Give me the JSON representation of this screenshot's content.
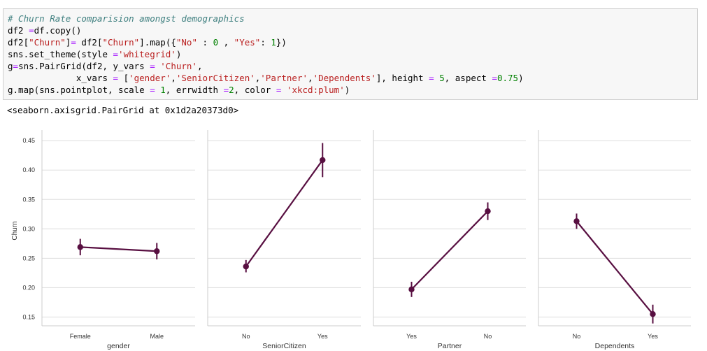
{
  "cell": {
    "lines": [
      [
        {
          "t": "comment",
          "v": "# Churn Rate comparision amongst demographics"
        }
      ],
      [
        {
          "t": "plain",
          "v": "df2 "
        },
        {
          "t": "op",
          "v": "="
        },
        {
          "t": "plain",
          "v": "df.copy()"
        }
      ],
      [
        {
          "t": "plain",
          "v": "df2["
        },
        {
          "t": "str",
          "v": "\"Churn\""
        },
        {
          "t": "plain",
          "v": "]"
        },
        {
          "t": "op",
          "v": "="
        },
        {
          "t": "plain",
          "v": " df2["
        },
        {
          "t": "str",
          "v": "\"Churn\""
        },
        {
          "t": "plain",
          "v": "].map({"
        },
        {
          "t": "str",
          "v": "\"No\""
        },
        {
          "t": "plain",
          "v": " : "
        },
        {
          "t": "num",
          "v": "0"
        },
        {
          "t": "plain",
          "v": " , "
        },
        {
          "t": "str",
          "v": "\"Yes\""
        },
        {
          "t": "plain",
          "v": ": "
        },
        {
          "t": "num",
          "v": "1"
        },
        {
          "t": "plain",
          "v": "})"
        }
      ],
      [
        {
          "t": "plain",
          "v": "sns.set_theme(style "
        },
        {
          "t": "op",
          "v": "="
        },
        {
          "t": "str",
          "v": "'whitegrid'"
        },
        {
          "t": "plain",
          "v": ")"
        }
      ],
      [
        {
          "t": "plain",
          "v": "g"
        },
        {
          "t": "op",
          "v": "="
        },
        {
          "t": "plain",
          "v": "sns.PairGrid(df2, y_vars "
        },
        {
          "t": "op",
          "v": "="
        },
        {
          "t": "plain",
          "v": " "
        },
        {
          "t": "str",
          "v": "'Churn'"
        },
        {
          "t": "plain",
          "v": ","
        }
      ],
      [
        {
          "t": "plain",
          "v": "             x_vars "
        },
        {
          "t": "op",
          "v": "="
        },
        {
          "t": "plain",
          "v": " ["
        },
        {
          "t": "str",
          "v": "'gender'"
        },
        {
          "t": "plain",
          "v": ","
        },
        {
          "t": "str",
          "v": "'SeniorCitizen'"
        },
        {
          "t": "plain",
          "v": ","
        },
        {
          "t": "str",
          "v": "'Partner'"
        },
        {
          "t": "plain",
          "v": ","
        },
        {
          "t": "str",
          "v": "'Dependents'"
        },
        {
          "t": "plain",
          "v": "], height "
        },
        {
          "t": "op",
          "v": "="
        },
        {
          "t": "plain",
          "v": " "
        },
        {
          "t": "num",
          "v": "5"
        },
        {
          "t": "plain",
          "v": ", aspect "
        },
        {
          "t": "op",
          "v": "="
        },
        {
          "t": "num",
          "v": "0.75"
        },
        {
          "t": "plain",
          "v": ")"
        }
      ],
      [
        {
          "t": "plain",
          "v": "g.map(sns.pointplot, scale "
        },
        {
          "t": "op",
          "v": "="
        },
        {
          "t": "plain",
          "v": " "
        },
        {
          "t": "num",
          "v": "1"
        },
        {
          "t": "plain",
          "v": ", errwidth "
        },
        {
          "t": "op",
          "v": "="
        },
        {
          "t": "num",
          "v": "2"
        },
        {
          "t": "plain",
          "v": ", color "
        },
        {
          "t": "op",
          "v": "="
        },
        {
          "t": "plain",
          "v": " "
        },
        {
          "t": "str",
          "v": "'xkcd:plum'"
        },
        {
          "t": "plain",
          "v": ")"
        }
      ]
    ]
  },
  "output": {
    "text": "<seaborn.axisgrid.PairGrid at 0x1d2a20373d0>"
  },
  "chart_data": {
    "type": "pointplot",
    "ylabel": "Churn",
    "ylim": [
      0.135,
      0.455
    ],
    "yticks": [
      "0.15",
      "0.20",
      "0.25",
      "0.30",
      "0.35",
      "0.40",
      "0.45"
    ],
    "grid": true,
    "color": "#580f41",
    "grid_color": "#dddddd",
    "panels": [
      {
        "xlabel": "gender",
        "categories": [
          "Female",
          "Male"
        ],
        "values": [
          0.269,
          0.262
        ],
        "ci": [
          [
            0.255,
            0.283
          ],
          [
            0.248,
            0.276
          ]
        ]
      },
      {
        "xlabel": "SeniorCitizen",
        "categories": [
          "No",
          "Yes"
        ],
        "values": [
          0.236,
          0.417
        ],
        "ci": [
          [
            0.226,
            0.247
          ],
          [
            0.388,
            0.446
          ]
        ]
      },
      {
        "xlabel": "Partner",
        "categories": [
          "Yes",
          "No"
        ],
        "values": [
          0.197,
          0.33
        ],
        "ci": [
          [
            0.184,
            0.21
          ],
          [
            0.315,
            0.345
          ]
        ]
      },
      {
        "xlabel": "Dependents",
        "categories": [
          "No",
          "Yes"
        ],
        "values": [
          0.313,
          0.155
        ],
        "ci": [
          [
            0.3,
            0.326
          ],
          [
            0.139,
            0.171
          ]
        ]
      }
    ]
  }
}
